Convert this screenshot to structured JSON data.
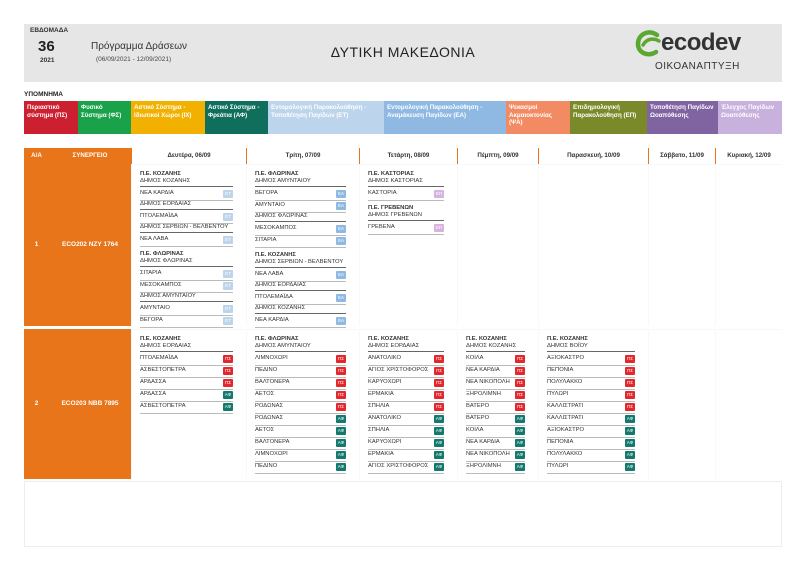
{
  "header": {
    "week_label": "ΕΒΔΟΜΑΔΑ",
    "week_number": "36",
    "year": "2021",
    "program_title": "Πρόγραμμα Δράσεων",
    "program_dates": "(06/09/2021 - 12/09/2021)",
    "region": "ΔΥΤΙΚΗ ΜΑΚΕΔΟΝΙΑ",
    "logo_text": "ecodev",
    "logo_sub": "ΟΙΚΟΑΝΑΠΤΥΞΗ"
  },
  "legend": {
    "title": "ΥΠΟΜΝΗΜΑ",
    "items": [
      {
        "label": "Περιαστικό σύστημα (ΠΣ)",
        "color": "#cc1f2f"
      },
      {
        "label": "Φυσικό Σύστημα (ΦΣ)",
        "color": "#19a24a"
      },
      {
        "label": "Αστικό Σύστημα - Ιδιωτικοί Χώροι (ΙΧ)",
        "color": "#f2b100"
      },
      {
        "label": "Αστικό Σύστημα - Φρεάτια (ΑΦ)",
        "color": "#0f6f5c"
      },
      {
        "label": "Εντομολογική Παρακολούθηση - Τοποθέτηση Παγίδων (ΕΤ)",
        "color": "#bcd4ec"
      },
      {
        "label": "Εντομολογική Παρακολούθηση - Αναμάκευση Παγίδων (ΕΑ)",
        "color": "#8fb9e3"
      },
      {
        "label": "Ψεκασμοί Ακμαιοκτονίας (ΨΑ)",
        "color": "#f28b63"
      },
      {
        "label": "Επιδημιολογική Παρακολούθηση (ΕΠ)",
        "color": "#7a8a2a"
      },
      {
        "label": "Τοποθέτηση Παγίδων Ωοαπόθεσης",
        "color": "#8064a2"
      },
      {
        "label": "Έλεγχος Παγίδων Ωοαπόθεσης",
        "color": "#c9b1dd"
      }
    ]
  },
  "columns": {
    "aa": "Α/Α",
    "synergeio": "ΣΥΝΕΡΓΕΙΟ",
    "days": [
      "Δευτέρα, 06/09",
      "Τρίτη, 07/09",
      "Τετάρτη, 08/09",
      "Πέμπτη, 09/09",
      "Παρασκευή, 10/09",
      "Σάββατο, 11/09",
      "Κυριακή, 12/09"
    ]
  },
  "rows": [
    {
      "aa": "1",
      "synergeio": "ECO202  ΝΖΥ 1764",
      "days": [
        [
          {
            "pe": "Π.Ε. ΚΟΖΑΝΗΣ",
            "dimos": "ΔΗΜΟΣ ΚΟΖΑΝΗΣ",
            "items": [
              {
                "name": "ΝΕΑ ΚΑΡΔΙΑ",
                "tag": "ΕΤ"
              }
            ]
          },
          {
            "pe": "",
            "dimos": "ΔΗΜΟΣ ΕΟΡΔΑΙΑΣ",
            "items": [
              {
                "name": "ΠΤΟΛΕΜΑΪΔΑ",
                "tag": "ΕΤ"
              }
            ]
          },
          {
            "pe": "",
            "dimos": "ΔΗΜΟΣ ΣΕΡΒΙΩΝ - ΒΕΛΒΕΝΤΟΥ",
            "items": [
              {
                "name": "ΝΕΑ ΛΑΒΑ",
                "tag": "ΕΤ"
              }
            ]
          },
          {
            "pe": "Π.Ε. ΦΛΩΡΙΝΑΣ",
            "dimos": "ΔΗΜΟΣ ΦΛΩΡΙΝΑΣ",
            "items": [
              {
                "name": "ΣΙΤΑΡΙΑ",
                "tag": "ΕΤ"
              },
              {
                "name": "ΜΕΣΟΚΑΜΠΟΣ",
                "tag": "ΕΤ"
              }
            ]
          },
          {
            "pe": "",
            "dimos": "ΔΗΜΟΣ ΑΜΥΝΤΑΙΟΥ",
            "items": [
              {
                "name": "ΑΜΥΝΤΑΙΟ",
                "tag": "ΕΤ"
              },
              {
                "name": "ΒΕΓΟΡΑ",
                "tag": "ΕΤ"
              }
            ]
          }
        ],
        [
          {
            "pe": "Π.Ε. ΦΛΩΡΙΝΑΣ",
            "dimos": "ΔΗΜΟΣ ΑΜΥΝΤΑΙΟΥ",
            "items": [
              {
                "name": "ΒΕΓΟΡΑ",
                "tag": "ΕΑ"
              },
              {
                "name": "ΑΜΥΝΤΑΙΟ",
                "tag": "ΕΑ"
              }
            ]
          },
          {
            "pe": "",
            "dimos": "ΔΗΜΟΣ ΦΛΩΡΙΝΑΣ",
            "items": [
              {
                "name": "ΜΕΣΟΚΑΜΠΟΣ",
                "tag": "ΕΑ"
              },
              {
                "name": "ΣΙΤΑΡΙΑ",
                "tag": "ΕΑ"
              }
            ]
          },
          {
            "pe": "Π.Ε. ΚΟΖΑΝΗΣ",
            "dimos": "ΔΗΜΟΣ ΣΕΡΒΙΩΝ - ΒΕΛΒΕΝΤΟΥ",
            "items": [
              {
                "name": "ΝΕΑ ΛΑΒΑ",
                "tag": "ΕΑ"
              }
            ]
          },
          {
            "pe": "",
            "dimos": "ΔΗΜΟΣ ΕΟΡΔΑΙΑΣ",
            "items": [
              {
                "name": "ΠΤΟΛΕΜΑΪΔΑ",
                "tag": "ΕΑ"
              }
            ]
          },
          {
            "pe": "",
            "dimos": "ΔΗΜΟΣ ΚΟΖΑΝΗΣ",
            "items": [
              {
                "name": "ΝΕΑ ΚΑΡΔΙΑ",
                "tag": "ΕΑ"
              }
            ]
          }
        ],
        [
          {
            "pe": "Π.Ε. ΚΑΣΤΟΡΙΑΣ",
            "dimos": "ΔΗΜΟΣ ΚΑΣΤΟΡΙΑΣ",
            "items": [
              {
                "name": "ΚΑΣΤΟΡΙΑ",
                "tag": "ΕΠ"
              }
            ]
          },
          {
            "pe": "Π.Ε. ΓΡΕΒΕΝΩΝ",
            "dimos": "ΔΗΜΟΣ ΓΡΕΒΕΝΩΝ",
            "items": [
              {
                "name": "ΓΡΕΒΕΝΑ",
                "tag": "ΕΠ"
              }
            ]
          }
        ],
        [],
        [],
        [],
        []
      ]
    },
    {
      "aa": "2",
      "synergeio": "ECO203  ΝΒΒ 7895",
      "days": [
        [
          {
            "pe": "Π.Ε. ΚΟΖΑΝΗΣ",
            "dimos": "ΔΗΜΟΣ ΕΟΡΔΑΙΑΣ",
            "items": [
              {
                "name": "ΠΤΟΛΕΜΑΪΔΑ",
                "tag": "ΠΣ"
              },
              {
                "name": "ΑΣΒΕΣΤΟΠΕΤΡΑ",
                "tag": "ΠΣ"
              },
              {
                "name": "ΑΡΔΑΣΣΑ",
                "tag": "ΠΣ"
              },
              {
                "name": "ΑΡΔΑΣΣΑ",
                "tag": "ΑΦ"
              },
              {
                "name": "ΑΣΒΕΣΤΟΠΕΤΡΑ",
                "tag": "ΑΦ"
              }
            ]
          }
        ],
        [
          {
            "pe": "Π.Ε. ΦΛΩΡΙΝΑΣ",
            "dimos": "ΔΗΜΟΣ ΑΜΥΝΤΑΙΟΥ",
            "items": [
              {
                "name": "ΛΙΜΝΟΧΩΡΙ",
                "tag": "ΠΣ"
              },
              {
                "name": "ΠΕΔΙΝΟ",
                "tag": "ΠΣ"
              },
              {
                "name": "ΒΑΛΤΟΝΕΡΑ",
                "tag": "ΠΣ"
              },
              {
                "name": "ΑΕΤΟΣ",
                "tag": "ΠΣ"
              },
              {
                "name": "ΡΟΔΩΝΑΣ",
                "tag": "ΠΣ"
              },
              {
                "name": "ΡΟΔΩΝΑΣ",
                "tag": "ΑΦ"
              },
              {
                "name": "ΑΕΤΟΣ",
                "tag": "ΑΦ"
              },
              {
                "name": "ΒΑΛΤΟΝΕΡΑ",
                "tag": "ΑΦ"
              },
              {
                "name": "ΛΙΜΝΟΧΩΡΙ",
                "tag": "ΑΦ"
              },
              {
                "name": "ΠΕΔΙΝΟ",
                "tag": "ΑΦ"
              }
            ]
          }
        ],
        [
          {
            "pe": "Π.Ε. ΚΟΖΑΝΗΣ",
            "dimos": "ΔΗΜΟΣ ΕΟΡΔΑΙΑΣ",
            "items": [
              {
                "name": "ΑΝΑΤΟΛΙΚΟ",
                "tag": "ΠΣ"
              },
              {
                "name": "ΑΓΙΟΣ ΧΡΙΣΤΟΦΟΡΟΣ",
                "tag": "ΠΣ"
              },
              {
                "name": "ΚΑΡΥΟΧΩΡΙ",
                "tag": "ΠΣ"
              },
              {
                "name": "ΕΡΜΑΚΙΑ",
                "tag": "ΠΣ"
              },
              {
                "name": "ΣΠΗΛΙΑ",
                "tag": "ΠΣ"
              },
              {
                "name": "ΑΝΑΤΟΛΙΚΟ",
                "tag": "ΑΦ"
              },
              {
                "name": "ΣΠΗΛΙΑ",
                "tag": "ΑΦ"
              },
              {
                "name": "ΚΑΡΥΟΧΩΡΙ",
                "tag": "ΑΦ"
              },
              {
                "name": "ΕΡΜΑΚΙΑ",
                "tag": "ΑΦ"
              },
              {
                "name": "ΑΓΙΟΣ ΧΡΙΣΤΟΦΟΡΟΣ",
                "tag": "ΑΦ"
              }
            ]
          }
        ],
        [
          {
            "pe": "Π.Ε. ΚΟΖΑΝΗΣ",
            "dimos": "ΔΗΜΟΣ ΚΟΖΑΝΗΣ",
            "items": [
              {
                "name": "ΚΟΙΛΑ",
                "tag": "ΠΣ"
              },
              {
                "name": "ΝΕΑ ΚΑΡΔΙΑ",
                "tag": "ΠΣ"
              },
              {
                "name": "ΝΕΑ ΝΙΚΟΠΟΛΗ",
                "tag": "ΠΣ"
              },
              {
                "name": "ΞΗΡΟΛΙΜΝΗ",
                "tag": "ΠΣ"
              },
              {
                "name": "ΒΑΤΕΡΟ",
                "tag": "ΠΣ"
              },
              {
                "name": "ΒΑΤΕΡΟ",
                "tag": "ΑΦ"
              },
              {
                "name": "ΚΟΙΛΑ",
                "tag": "ΑΦ"
              },
              {
                "name": "ΝΕΑ ΚΑΡΔΙΑ",
                "tag": "ΑΦ"
              },
              {
                "name": "ΝΕΑ ΝΙΚΟΠΟΛΗ",
                "tag": "ΑΦ"
              },
              {
                "name": "ΞΗΡΟΛΙΜΝΗ",
                "tag": "ΑΦ"
              }
            ]
          }
        ],
        [
          {
            "pe": "Π.Ε. ΚΟΖΑΝΗΣ",
            "dimos": "ΔΗΜΟΣ ΒΟΪΟΥ",
            "items": [
              {
                "name": "ΑΞΙΟΚΑΣΤΡΟ",
                "tag": "ΠΣ"
              },
              {
                "name": "ΠΕΠΟΝΙΑ",
                "tag": "ΠΣ"
              },
              {
                "name": "ΠΟΛΥΛΑΚΚΟ",
                "tag": "ΠΣ"
              },
              {
                "name": "ΠΥΛΩΡΙ",
                "tag": "ΠΣ"
              },
              {
                "name": "ΚΑΛΛΙΣΤΡΑΤΙ",
                "tag": "ΠΣ"
              },
              {
                "name": "ΚΑΛΛΙΣΤΡΑΤΙ",
                "tag": "ΑΦ"
              },
              {
                "name": "ΑΞΙΟΚΑΣΤΡΟ",
                "tag": "ΑΦ"
              },
              {
                "name": "ΠΕΠΟΝΙΑ",
                "tag": "ΑΦ"
              },
              {
                "name": "ΠΟΛΥΛΑΚΚΟ",
                "tag": "ΑΦ"
              },
              {
                "name": "ΠΥΛΩΡΙ",
                "tag": "ΑΦ"
              }
            ]
          }
        ],
        [],
        []
      ]
    }
  ]
}
